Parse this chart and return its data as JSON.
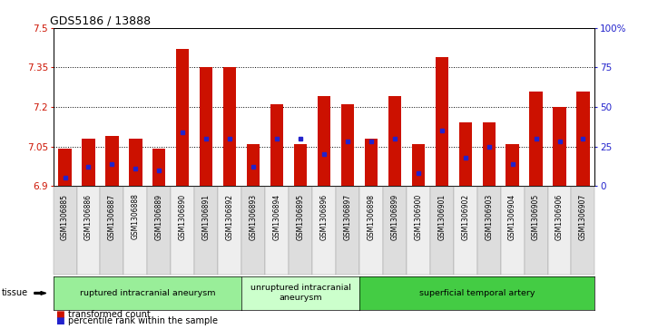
{
  "title": "GDS5186 / 13888",
  "samples": [
    "GSM1306885",
    "GSM1306886",
    "GSM1306887",
    "GSM1306888",
    "GSM1306889",
    "GSM1306890",
    "GSM1306891",
    "GSM1306892",
    "GSM1306893",
    "GSM1306894",
    "GSM1306895",
    "GSM1306896",
    "GSM1306897",
    "GSM1306898",
    "GSM1306899",
    "GSM1306900",
    "GSM1306901",
    "GSM1306902",
    "GSM1306903",
    "GSM1306904",
    "GSM1306905",
    "GSM1306906",
    "GSM1306907"
  ],
  "transformed_count": [
    7.04,
    7.08,
    7.09,
    7.08,
    7.04,
    7.42,
    7.35,
    7.35,
    7.06,
    7.21,
    7.06,
    7.24,
    7.21,
    7.08,
    7.24,
    7.06,
    7.39,
    7.14,
    7.14,
    7.06,
    7.26,
    7.2,
    7.26
  ],
  "percentile_rank": [
    5,
    12,
    14,
    11,
    10,
    34,
    30,
    30,
    12,
    30,
    30,
    20,
    28,
    28,
    30,
    8,
    35,
    18,
    25,
    14,
    30,
    28,
    30
  ],
  "ylim_left": [
    6.9,
    7.5
  ],
  "ylim_right": [
    0,
    100
  ],
  "yticks_left": [
    6.9,
    7.05,
    7.2,
    7.35,
    7.5
  ],
  "yticks_right": [
    0,
    25,
    50,
    75,
    100
  ],
  "ytick_labels_left": [
    "6.9",
    "7.05",
    "7.2",
    "7.35",
    "7.5"
  ],
  "ytick_labels_right": [
    "0",
    "25",
    "50",
    "75",
    "100%"
  ],
  "bar_color": "#CC1100",
  "marker_color": "#2222CC",
  "groups": [
    {
      "label": "ruptured intracranial aneurysm",
      "start": 0,
      "end": 7,
      "color": "#99EE99"
    },
    {
      "label": "unruptured intracranial\naneurysm",
      "start": 8,
      "end": 12,
      "color": "#CCFFCC"
    },
    {
      "label": "superficial temporal artery",
      "start": 13,
      "end": 22,
      "color": "#44CC44"
    }
  ],
  "tissue_label": "tissue",
  "legend_red_label": "transformed count",
  "legend_blue_label": "percentile rank within the sample",
  "bar_width": 0.55,
  "base_value": 6.9
}
